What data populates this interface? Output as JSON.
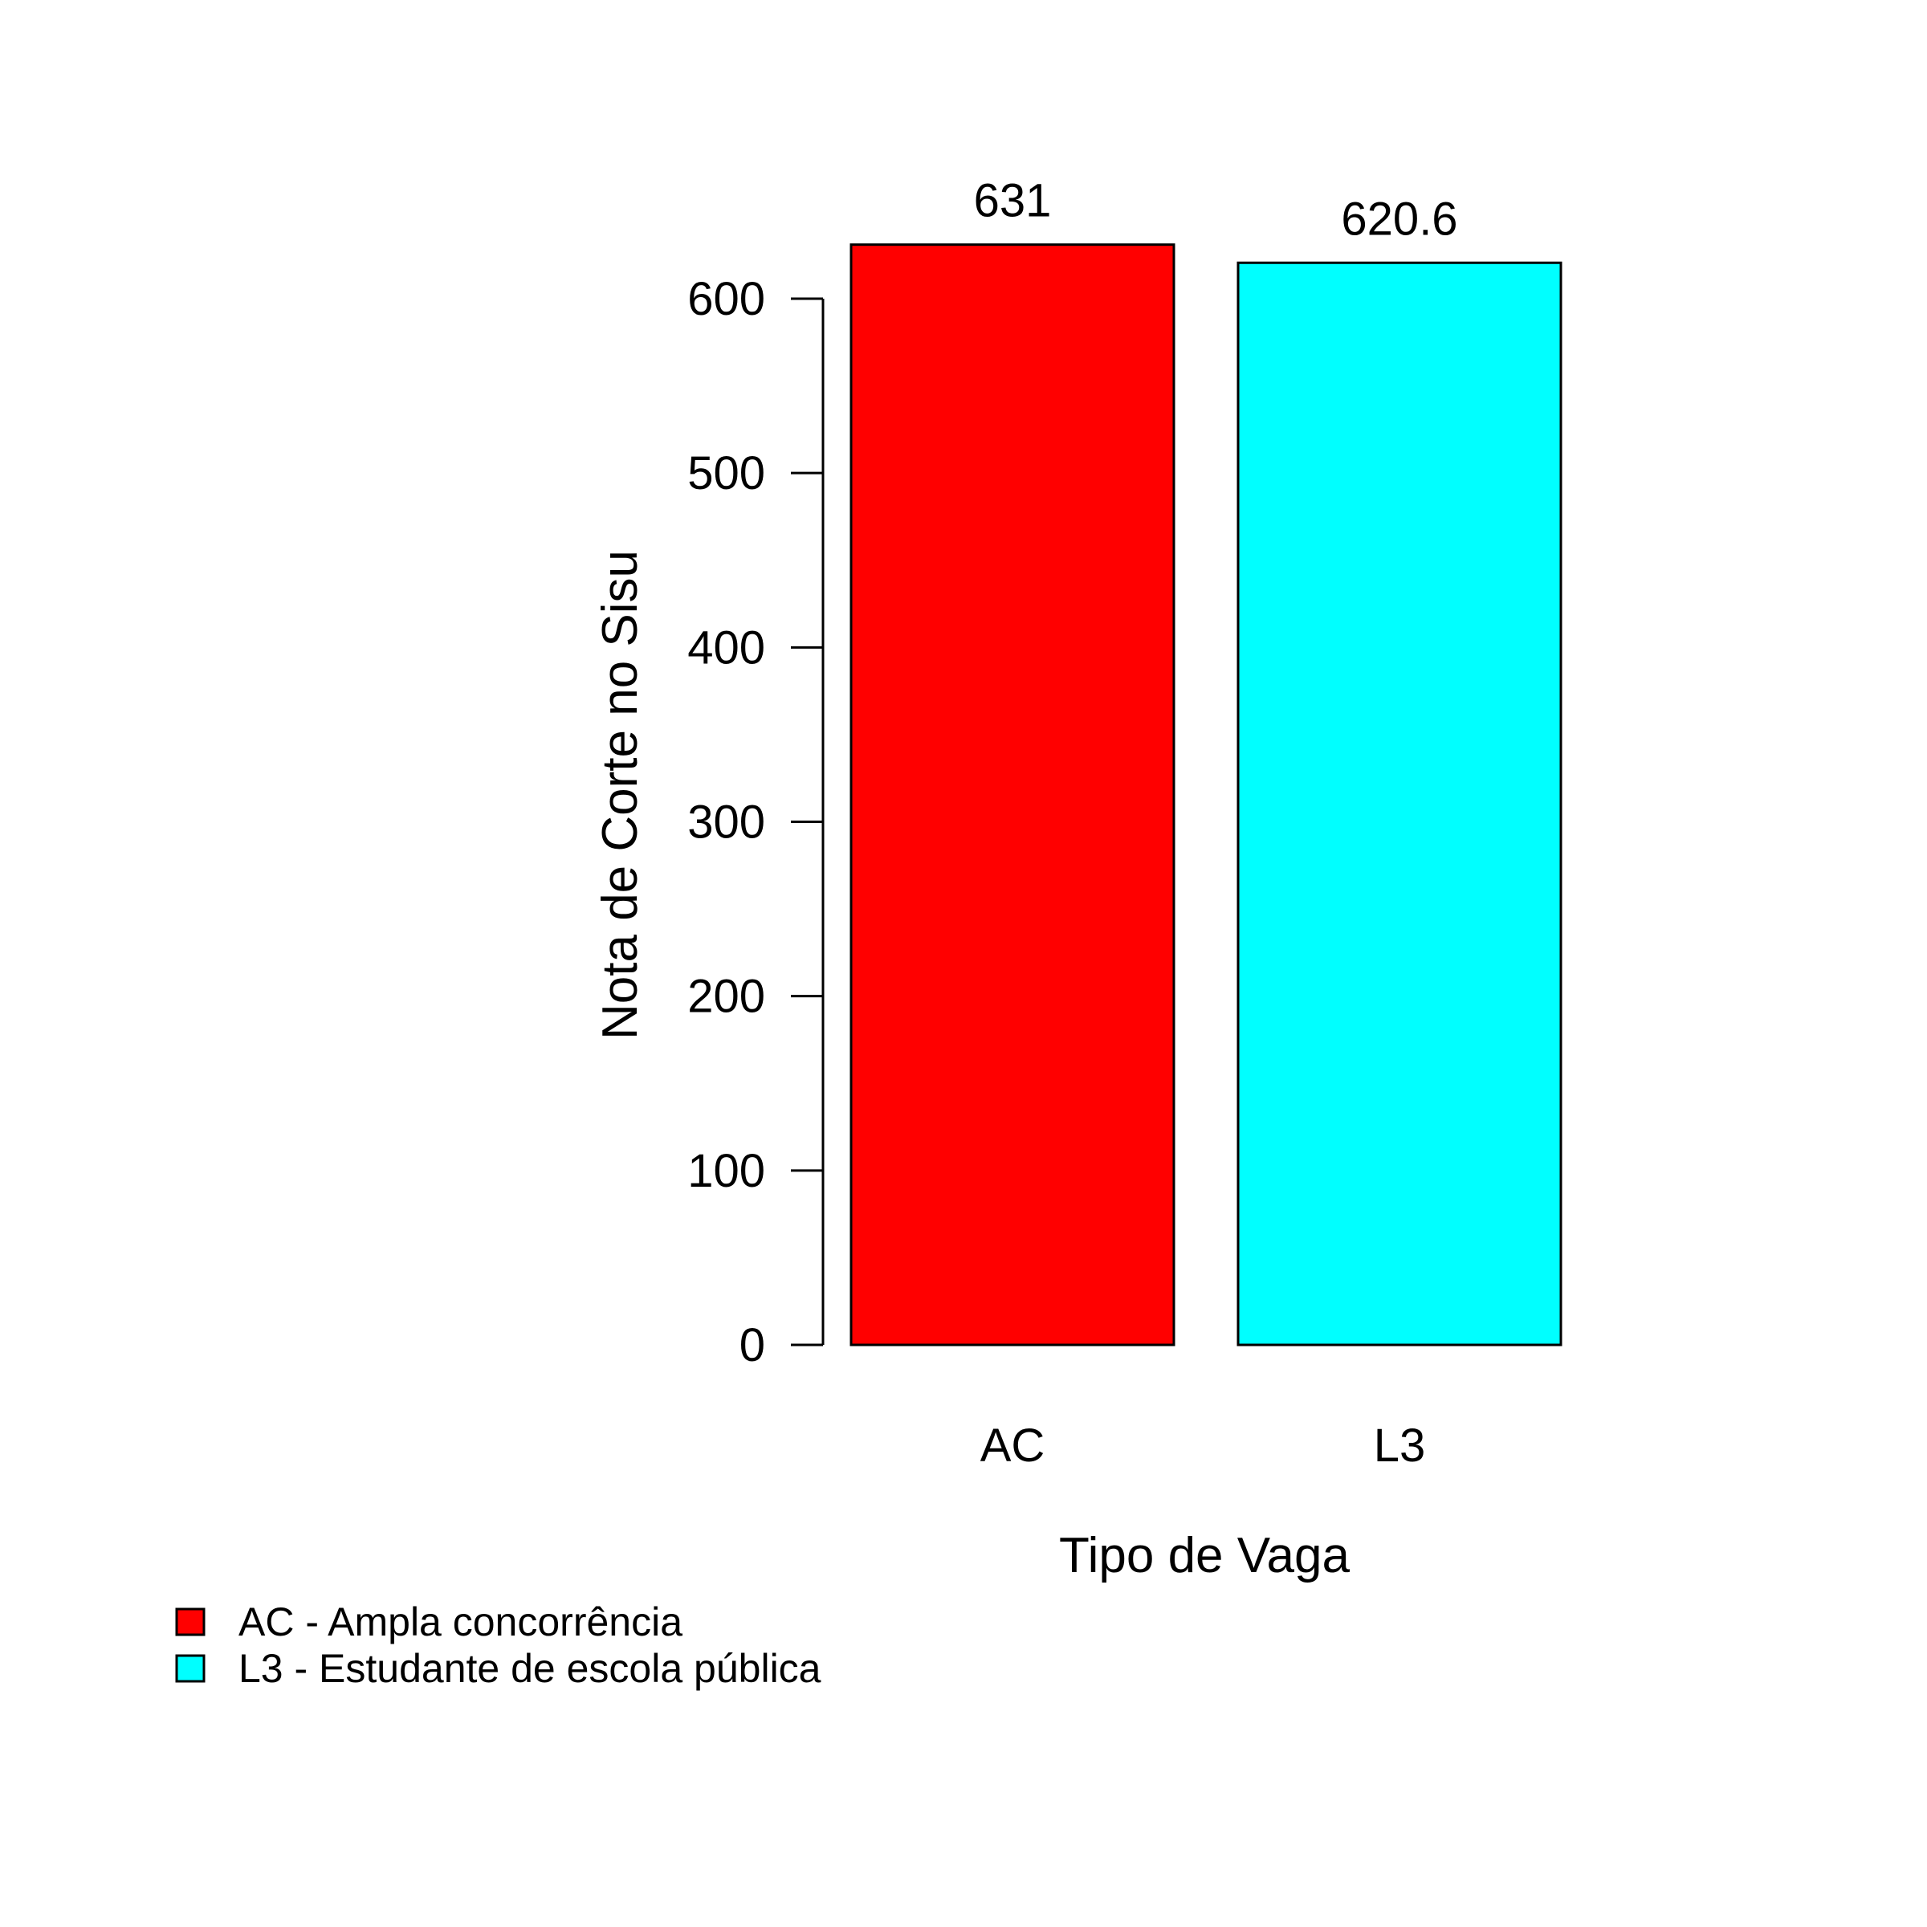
{
  "chart_data": {
    "type": "bar",
    "categories": [
      "AC",
      "L3"
    ],
    "values": [
      631,
      620.6
    ],
    "value_labels": [
      "631",
      "620.6"
    ],
    "colors": [
      "#ff0000",
      "#00ffff"
    ],
    "title": "",
    "xlabel": "Tipo de Vaga",
    "ylabel": "Nota de Corte no Sisu",
    "ylim": [
      0,
      631
    ],
    "yticks": [
      0,
      100,
      200,
      300,
      400,
      500,
      600
    ],
    "ytick_labels": [
      "0",
      "100",
      "200",
      "300",
      "400",
      "500",
      "600"
    ],
    "grid": false,
    "legend": {
      "placement": "bottom-left",
      "entries": [
        {
          "label": "AC - Ampla concorrência",
          "color": "#ff0000"
        },
        {
          "label": "L3 - Estudante de escola pública",
          "color": "#00ffff"
        }
      ]
    }
  }
}
